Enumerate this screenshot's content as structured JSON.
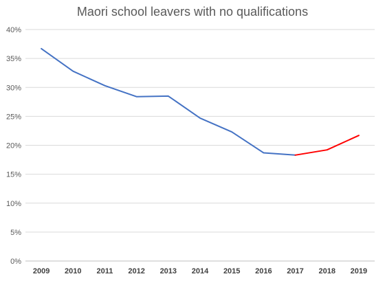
{
  "chart_data": {
    "type": "line",
    "title": "Maori school leavers with no qualifications",
    "xlabel": "",
    "ylabel": "",
    "x": [
      "2009",
      "2010",
      "2011",
      "2012",
      "2013",
      "2014",
      "2015",
      "2016",
      "2017",
      "2018",
      "2019"
    ],
    "ylim": [
      0,
      40
    ],
    "yticks": [
      0,
      5,
      10,
      15,
      20,
      25,
      30,
      35,
      40
    ],
    "ytick_labels": [
      "0%",
      "5%",
      "10%",
      "15%",
      "20%",
      "25%",
      "30%",
      "35%",
      "40%"
    ],
    "grid": true,
    "legend": "none",
    "series": [
      {
        "color": "#4472C4",
        "x": [
          "2009",
          "2010",
          "2011",
          "2012",
          "2013",
          "2014",
          "2015",
          "2016",
          "2017"
        ],
        "values": [
          36.7,
          32.8,
          30.3,
          28.4,
          28.5,
          24.7,
          22.3,
          18.7,
          18.3
        ]
      },
      {
        "color": "#FF0000",
        "x": [
          "2017",
          "2018",
          "2019"
        ],
        "values": [
          18.3,
          19.2,
          21.7
        ]
      }
    ]
  }
}
